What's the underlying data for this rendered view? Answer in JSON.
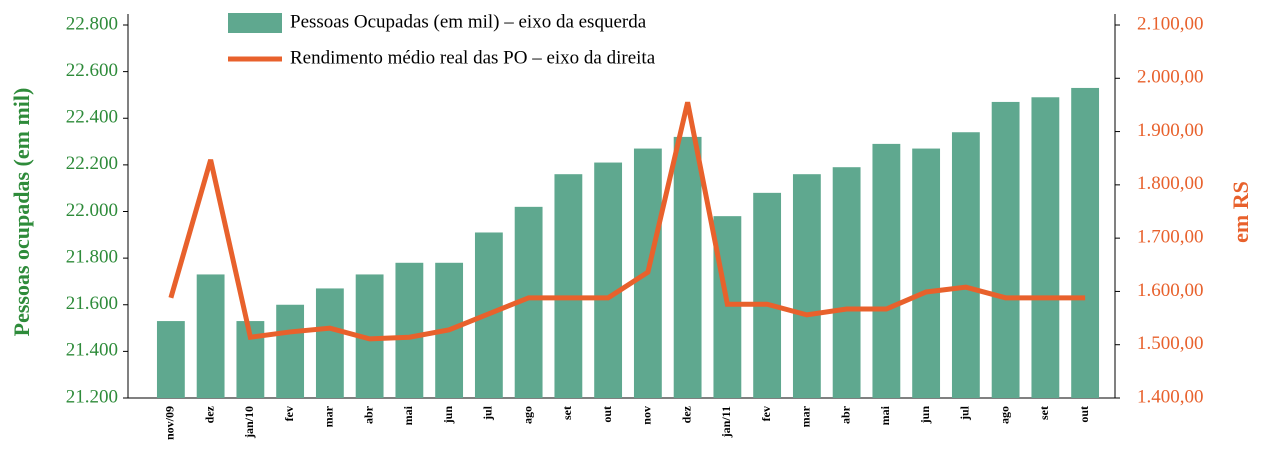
{
  "chart_data": {
    "type": "bar_line",
    "categories": [
      "nov/09",
      "dez",
      "jan/10",
      "fev",
      "mar",
      "abr",
      "mai",
      "jun",
      "jul",
      "ago",
      "set",
      "out",
      "nov",
      "dez",
      "jan/11",
      "fev",
      "mar",
      "abr",
      "mai",
      "jun",
      "jul",
      "ago",
      "set",
      "out"
    ],
    "series": [
      {
        "name": "Pessoas Ocupadas (em mil) – eixo da esquerda",
        "type": "bar",
        "color": "#5fa88f",
        "values": [
          21530,
          21730,
          21530,
          21600,
          21670,
          21730,
          21780,
          21780,
          21910,
          22020,
          22160,
          22210,
          22270,
          22320,
          21980,
          22080,
          22160,
          22190,
          22290,
          22270,
          22340,
          22470,
          22490,
          22530
        ]
      },
      {
        "name": "Rendimento médio real das PO – eixo da direita",
        "type": "line",
        "axis": "y2",
        "color": "#e8612c",
        "values": [
          1588,
          1847,
          1514,
          1524,
          1531,
          1511,
          1514,
          1528,
          1558,
          1588,
          1588,
          1588,
          1636,
          1955,
          1576,
          1576,
          1556,
          1567,
          1567,
          1599,
          1608,
          1588,
          1588,
          1588
        ]
      }
    ],
    "ylabel": "Pessoas ocupadas (em mil)",
    "y2label": "em RS",
    "ylim": [
      21200,
      22800
    ],
    "yticks": [
      {
        "value": 21200,
        "label": "21.200"
      },
      {
        "value": 21400,
        "label": "21.400"
      },
      {
        "value": 21600,
        "label": "21.600"
      },
      {
        "value": 21800,
        "label": "21.800"
      },
      {
        "value": 22000,
        "label": "22.000"
      },
      {
        "value": 22200,
        "label": "22.200"
      },
      {
        "value": 22400,
        "label": "22.400"
      },
      {
        "value": 22600,
        "label": "22.600"
      },
      {
        "value": 22800,
        "label": "22.800"
      }
    ],
    "y2lim": [
      1400,
      2100
    ],
    "y2ticks": [
      {
        "value": 1400,
        "label": "1.400,00"
      },
      {
        "value": 1500,
        "label": "1.500,00"
      },
      {
        "value": 1600,
        "label": "1.600,00"
      },
      {
        "value": 1700,
        "label": "1.700,00"
      },
      {
        "value": 1800,
        "label": "1.800,00"
      },
      {
        "value": 1900,
        "label": "1.900,00"
      },
      {
        "value": 2000,
        "label": "2.000,00"
      },
      {
        "value": 2100,
        "label": "2.100,00"
      }
    ],
    "legend": "top"
  }
}
